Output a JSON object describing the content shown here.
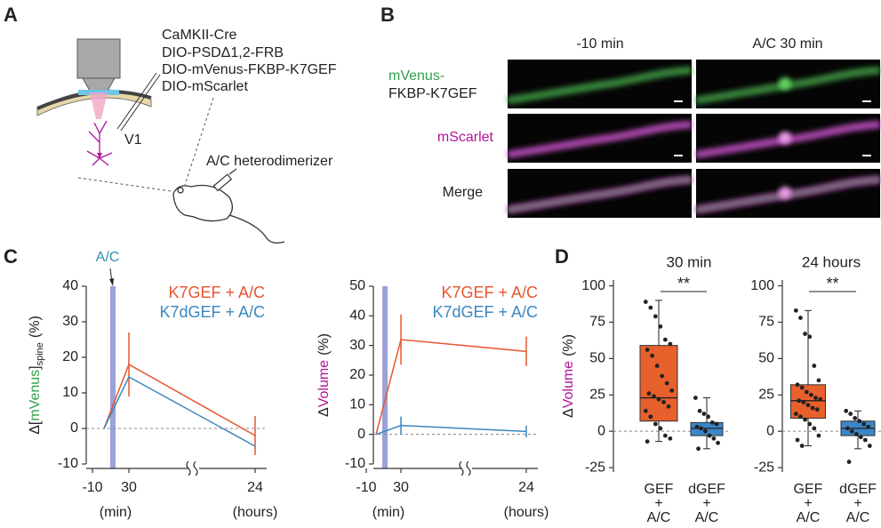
{
  "panel_a": {
    "letter": "A",
    "constructs": [
      "CaMKII-Cre",
      "DIO-PSDΔ1,2-FRB",
      "DIO-mVenus-FKBP-K7GEF",
      "DIO-mScarlet"
    ],
    "region": "V1",
    "drug": "A/C heterodimerizer"
  },
  "panel_b": {
    "letter": "B",
    "columns": [
      "-10 min",
      "A/C 30 min"
    ],
    "rows": [
      [
        "mVenus-",
        "FKBP-K7GEF"
      ],
      [
        "mScarlet"
      ],
      [
        "Merge"
      ]
    ]
  },
  "panel_c_letter": "C",
  "panel_d_letter": "D",
  "chart_data": [
    {
      "type": "line",
      "annotation": "A/C",
      "ylabel_parts": [
        {
          "text": "Δ["
        },
        {
          "text": "mVenus",
          "color": "#2ea24a"
        },
        {
          "text": "]"
        },
        {
          "text": "spine",
          "sub": true
        },
        {
          "text": "(%)"
        }
      ],
      "categories": [
        "-10",
        "30",
        "24"
      ],
      "xlabels": [
        "(min)",
        "(hours)"
      ],
      "series": [
        {
          "name": "K7GEF + A/C",
          "color": "#e8552e",
          "values": [
            0,
            18,
            -2
          ],
          "errors": [
            null,
            9,
            5.5
          ]
        },
        {
          "name": "K7dGEF + A/C",
          "color": "#3a87c0",
          "values": [
            0,
            14.5,
            -5
          ]
        }
      ],
      "ylim": [
        -10,
        40
      ],
      "yticks": [
        -10,
        0,
        10,
        20,
        30,
        40
      ]
    },
    {
      "type": "line",
      "ylabel_parts": [
        {
          "text": "Δ"
        },
        {
          "text": "Volume",
          "color": "#b0159a"
        },
        {
          "text": "(%)"
        }
      ],
      "categories": [
        "-10",
        "30",
        "24"
      ],
      "xlabels": [
        "(min)",
        "(hours)"
      ],
      "series": [
        {
          "name": "K7GEF + A/C",
          "color": "#e8552e",
          "values": [
            0,
            32,
            28
          ],
          "errors": [
            null,
            8.5,
            5
          ]
        },
        {
          "name": "K7dGEF + A/C",
          "color": "#3a87c0",
          "values": [
            0,
            3,
            1
          ],
          "errors": [
            null,
            3,
            2
          ]
        }
      ],
      "ylim": [
        -10,
        50
      ],
      "yticks": [
        -10,
        0,
        10,
        20,
        30,
        40,
        50
      ]
    },
    {
      "type": "box",
      "title": "30 min",
      "significance": "**",
      "ylabel_parts": [
        {
          "text": "Δ"
        },
        {
          "text": "Volume",
          "color": "#b0159a"
        },
        {
          "text": "(%)"
        }
      ],
      "categories": [
        [
          "GEF",
          "+",
          "A/C"
        ],
        [
          "dGEF",
          "+",
          "A/C"
        ]
      ],
      "colors": [
        "#e8602c",
        "#3a86c8"
      ],
      "boxes": [
        {
          "whisker_low": -7,
          "q1": 7,
          "median": 23,
          "q3": 59,
          "whisker_high": 90
        },
        {
          "whisker_low": -12,
          "q1": -3,
          "median": 2,
          "q3": 6,
          "whisker_high": 23
        }
      ],
      "points": [
        [
          89,
          85,
          79,
          72,
          63,
          60,
          56,
          52,
          45,
          38,
          33,
          28,
          26,
          24,
          22,
          20,
          17,
          14,
          10,
          5,
          2,
          -3,
          -5,
          -7
        ],
        [
          23,
          14,
          12,
          10,
          6,
          5,
          3,
          2,
          0,
          -3,
          -5,
          -8,
          -12
        ]
      ],
      "ylim": [
        -28,
        104
      ],
      "yticks": [
        -25,
        0,
        25,
        50,
        75,
        100
      ]
    },
    {
      "type": "box",
      "title": "24 hours",
      "significance": "**",
      "categories": [
        [
          "GEF",
          "+",
          "A/C"
        ],
        [
          "dGEF",
          "+",
          "A/C"
        ]
      ],
      "colors": [
        "#e8602c",
        "#3a86c8"
      ],
      "boxes": [
        {
          "whisker_low": -10,
          "q1": 9,
          "median": 21,
          "q3": 32,
          "whisker_high": 83
        },
        {
          "whisker_low": -12,
          "q1": -3,
          "median": 2,
          "q3": 7,
          "whisker_high": 14
        }
      ],
      "points": [
        [
          83,
          78,
          67,
          65,
          45,
          35,
          32,
          30,
          27,
          25,
          23,
          22,
          21,
          20,
          18,
          16,
          15,
          12,
          10,
          8,
          5,
          2,
          -3,
          -6,
          -10
        ],
        [
          14,
          12,
          9,
          7,
          5,
          3,
          2,
          0,
          -2,
          -4,
          -6,
          -10,
          -21
        ]
      ],
      "ylim": [
        -28,
        104
      ],
      "yticks": [
        -25,
        0,
        25,
        50,
        75,
        100
      ]
    }
  ]
}
